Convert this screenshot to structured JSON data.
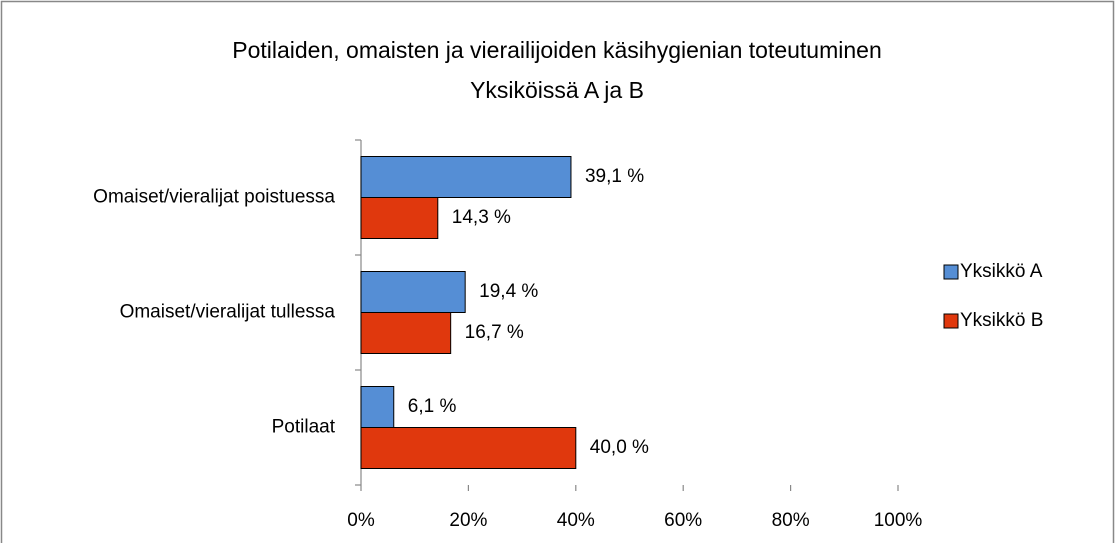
{
  "chart_data": {
    "type": "hbar",
    "title": [
      "Potilaiden, omaisten ja vierailijoiden käsihygienian toteutuminen",
      "Yksiköissä A ja B"
    ],
    "categories": [
      "Omaiset/vieralijat poistuessa",
      "Omaiset/vieralijat tullessa",
      "Potilaat"
    ],
    "series": [
      {
        "name": "Yksikkö A",
        "color": "#558ed5",
        "values": [
          39.1,
          19.4,
          6.1
        ],
        "value_labels": [
          "39,1 %",
          "19,4 %",
          "6,1 %"
        ]
      },
      {
        "name": "Yksikkö B",
        "color": "#e0380d",
        "values": [
          14.3,
          16.7,
          40.0
        ],
        "value_labels": [
          "14,3 %",
          "16,7 %",
          "40,0 %"
        ]
      }
    ],
    "xlim": [
      0,
      100
    ],
    "xticks": [
      {
        "value": 0,
        "label": "0%"
      },
      {
        "value": 20,
        "label": "20%"
      },
      {
        "value": 40,
        "label": "40%"
      },
      {
        "value": 60,
        "label": "60%"
      },
      {
        "value": 80,
        "label": "80%"
      },
      {
        "value": 100,
        "label": "100%"
      }
    ],
    "legend": "right"
  }
}
